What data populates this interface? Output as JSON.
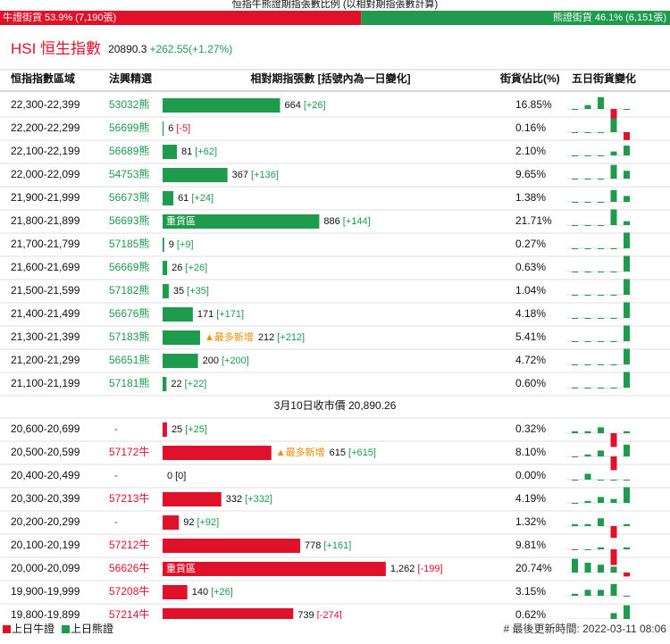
{
  "header": {
    "title": "恒指牛熊證期指張數比例 (以相對期指張數計算)",
    "bull": {
      "value": 53.9,
      "label": "牛證街貨 53.9% (7,190張)"
    },
    "bear": {
      "value": 46.1,
      "label": "熊證街貨 46.1% (6,151張)"
    }
  },
  "index": {
    "name": "HSI 恒生指數",
    "price": "20890.3",
    "change": "+262.55(+1.27%)"
  },
  "table": {
    "columns": [
      "恒指指數區域",
      "法興精選",
      "相對期指張數 [括號內為一日變化]",
      "街貨佔比(%)",
      "五日街貨變化"
    ],
    "bear_rows": [
      {
        "range": "22,300-22,399",
        "code": "53032熊",
        "count": 664,
        "change": "[+26]",
        "share": "16.85%",
        "five_day": [
          0,
          2,
          6,
          -5,
          0
        ]
      },
      {
        "range": "22,200-22,299",
        "code": "56699熊",
        "count": 6,
        "change": "[-5]",
        "share": "0.16%",
        "five_day": [
          0,
          0,
          0,
          7,
          -4
        ]
      },
      {
        "range": "22,100-22,199",
        "code": "56689熊",
        "count": 81,
        "change": "[+62]",
        "share": "2.10%",
        "five_day": [
          0,
          0,
          0,
          2,
          5
        ]
      },
      {
        "range": "22,000-22,099",
        "code": "54753熊",
        "count": 367,
        "change": "[+136]",
        "share": "9.65%",
        "five_day": [
          0,
          0,
          0,
          7,
          4
        ]
      },
      {
        "range": "21,900-21,999",
        "code": "56673熊",
        "count": 61,
        "change": "[+24]",
        "share": "1.38%",
        "five_day": [
          0,
          0,
          0,
          6,
          3
        ]
      },
      {
        "range": "21,800-21,899",
        "code": "56693熊",
        "count": 886,
        "change": "[+144]",
        "share": "21.71%",
        "heavy_tag": "重貨區",
        "five_day": [
          0,
          0,
          0,
          8,
          2
        ]
      },
      {
        "range": "21,700-21,799",
        "code": "57185熊",
        "count": 9,
        "change": "[+9]",
        "share": "0.27%",
        "five_day": [
          0,
          0,
          0,
          0,
          8
        ]
      },
      {
        "range": "21,600-21,699",
        "code": "56669熊",
        "count": 26,
        "change": "[+26]",
        "share": "0.63%",
        "five_day": [
          0,
          0,
          0,
          0,
          8
        ]
      },
      {
        "range": "21,500-21,599",
        "code": "57182熊",
        "count": 35,
        "change": "[+35]",
        "share": "1.04%",
        "five_day": [
          0,
          0,
          0,
          0,
          8
        ]
      },
      {
        "range": "21,400-21,499",
        "code": "56676熊",
        "count": 171,
        "change": "[+171]",
        "share": "4.18%",
        "five_day": [
          0,
          0,
          0,
          0,
          8
        ]
      },
      {
        "range": "21,300-21,399",
        "code": "57183熊",
        "count": 212,
        "change": "[+212]",
        "share": "5.41%",
        "new_tag": "▲最多新增",
        "five_day": [
          0,
          0,
          0,
          0,
          8
        ]
      },
      {
        "range": "21,200-21,299",
        "code": "56651熊",
        "count": 200,
        "change": "[+200]",
        "share": "4.72%",
        "five_day": [
          0,
          0,
          0,
          0,
          8
        ]
      },
      {
        "range": "21,100-21,199",
        "code": "57181熊",
        "count": 22,
        "change": "[+22]",
        "share": "0.60%",
        "five_day": [
          0,
          0,
          0,
          0,
          8
        ]
      }
    ],
    "close_price": "3月10日收市價 20,890.26",
    "bull_rows": [
      {
        "range": "20,600-20,699",
        "code": "-",
        "count": 25,
        "change": "[+25]",
        "share": "0.32%",
        "five_day": [
          1,
          1,
          3,
          -7,
          1
        ]
      },
      {
        "range": "20,500-20,599",
        "code": "57172牛",
        "count": 615,
        "change": "[+615]",
        "share": "8.10%",
        "new_tag": "▲最多新增",
        "five_day": [
          0,
          1,
          3,
          -7,
          6
        ]
      },
      {
        "range": "20,400-20,499",
        "code": "-",
        "count": 0,
        "change": "[0]",
        "share": "0.00%",
        "five_day": [
          0,
          3,
          0,
          0,
          0
        ]
      },
      {
        "range": "20,300-20,399",
        "code": "57213牛",
        "count": 332,
        "change": "[+332]",
        "share": "4.19%",
        "five_day": [
          0,
          1,
          3,
          2,
          8
        ]
      },
      {
        "range": "20,200-20,299",
        "code": "-",
        "count": 92,
        "change": "[+92]",
        "share": "1.32%",
        "five_day": [
          1,
          1,
          4,
          -6,
          1
        ]
      },
      {
        "range": "20,100-20,199",
        "code": "57212牛",
        "count": 778,
        "change": "[+161]",
        "share": "9.81%",
        "five_day": [
          0,
          0,
          1,
          -8,
          1
        ]
      },
      {
        "range": "20,000-20,099",
        "code": "56626牛",
        "count": {
          "value": 1262,
          "label": "1,262"
        },
        "change": "[-199]",
        "share": "20.74%",
        "heavy_tag": "重貨區",
        "five_day": [
          7,
          5,
          4,
          3,
          -2
        ]
      },
      {
        "range": "19,900-19,999",
        "code": "57208牛",
        "count": 140,
        "change": "[+26]",
        "share": "3.15%",
        "five_day": [
          1,
          3,
          3,
          6,
          0
        ]
      },
      {
        "range": "19,800-19,899",
        "code": "57214牛",
        "count": 739,
        "change": "[-274]",
        "share": "0.62%",
        "five_day": [
          0,
          0,
          0,
          3,
          7
        ]
      }
    ]
  },
  "footer": {
    "legend": [
      "上日牛證",
      "上日熊證"
    ],
    "updated": "# 最後更新時間: 2022-03-11 08:06"
  }
}
